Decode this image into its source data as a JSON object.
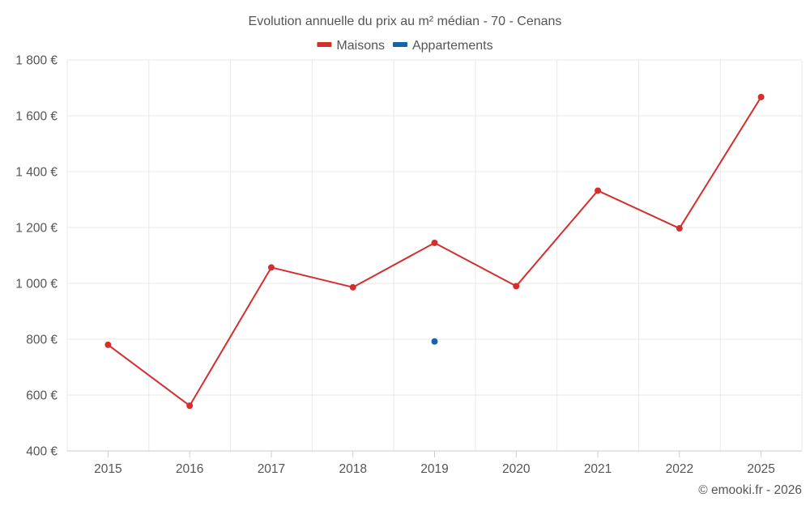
{
  "chart_data": {
    "type": "line",
    "title": "Evolution annuelle du prix au m² médian - 70 - Cenans",
    "categories": [
      "2015",
      "2016",
      "2017",
      "2018",
      "2019",
      "2020",
      "2021",
      "2022",
      "2025"
    ],
    "y_tick_labels": [
      "400 €",
      "600 €",
      "800 €",
      "1 000 €",
      "1 200 €",
      "1 400 €",
      "1 600 €",
      "1 800 €"
    ],
    "y_ticks": [
      400,
      600,
      800,
      1000,
      1200,
      1400,
      1600,
      1800
    ],
    "ylim": [
      400,
      1800
    ],
    "grid": true,
    "legend_position": "top-center",
    "series": [
      {
        "name": "Maisons",
        "color": "#d32f2f",
        "values": [
          780,
          562,
          1057,
          986,
          1145,
          990,
          1332,
          1197,
          1667
        ]
      },
      {
        "name": "Appartements",
        "color": "#1565a6",
        "values": [
          null,
          null,
          null,
          null,
          792,
          null,
          null,
          null,
          null
        ]
      }
    ],
    "xlabel": "",
    "ylabel": ""
  },
  "credit": "© emooki.fr - 2026"
}
